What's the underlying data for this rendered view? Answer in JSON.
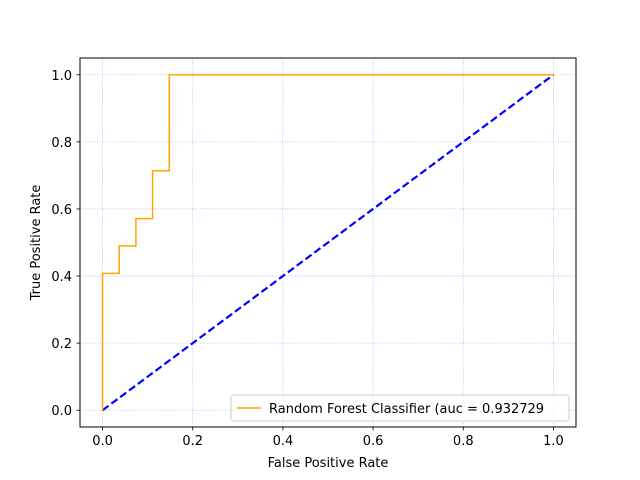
{
  "chart_data": {
    "type": "line",
    "title": "",
    "xlabel": "False Positive Rate",
    "ylabel": "True Positive Rate",
    "xlim": [
      -0.05,
      1.05
    ],
    "ylim": [
      -0.05,
      1.05
    ],
    "xticks": [
      0.0,
      0.2,
      0.4,
      0.6,
      0.8,
      1.0
    ],
    "yticks": [
      0.0,
      0.2,
      0.4,
      0.6,
      0.8,
      1.0
    ],
    "xtick_labels": [
      "0.0",
      "0.2",
      "0.4",
      "0.6",
      "0.8",
      "1.0"
    ],
    "ytick_labels": [
      "0.0",
      "0.2",
      "0.4",
      "0.6",
      "0.8",
      "1.0"
    ],
    "grid": true,
    "grid_color": "#0000ff",
    "legend_position": "lower-right",
    "series": [
      {
        "name": "Random Forest Classifier (auc = 0.932729",
        "color": "#ffa500",
        "style": "solid",
        "x": [
          0.0,
          0.0,
          0.0,
          0.037,
          0.037,
          0.074,
          0.074,
          0.111,
          0.111,
          0.148,
          0.148,
          1.0
        ],
        "y": [
          0.0,
          0.408,
          0.408,
          0.408,
          0.49,
          0.49,
          0.571,
          0.571,
          0.714,
          0.714,
          1.0,
          1.0
        ]
      },
      {
        "color": "#0000ff",
        "style": "dashed",
        "x": [
          0.0,
          1.0
        ],
        "y": [
          0.0,
          1.0
        ]
      }
    ]
  }
}
